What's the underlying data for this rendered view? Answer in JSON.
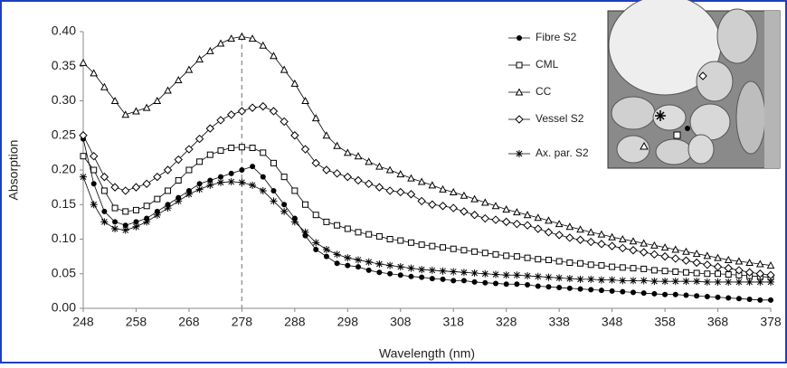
{
  "chart_data": {
    "type": "line",
    "x_label": "Wavelength (nm)",
    "y_label": "Absorption",
    "x": [
      248,
      250,
      252,
      254,
      256,
      258,
      260,
      262,
      264,
      266,
      268,
      270,
      272,
      274,
      276,
      278,
      280,
      282,
      284,
      286,
      288,
      290,
      292,
      294,
      296,
      298,
      300,
      302,
      304,
      306,
      308,
      310,
      312,
      314,
      316,
      318,
      320,
      322,
      324,
      326,
      328,
      330,
      332,
      334,
      336,
      338,
      340,
      342,
      344,
      346,
      348,
      350,
      352,
      354,
      356,
      358,
      360,
      362,
      364,
      366,
      368,
      370,
      372,
      374,
      376,
      378
    ],
    "series": [
      {
        "name": "Fibre S2",
        "color": "#000000",
        "marker": "circle",
        "values": [
          0.245,
          0.18,
          0.14,
          0.125,
          0.12,
          0.125,
          0.13,
          0.14,
          0.15,
          0.16,
          0.17,
          0.18,
          0.185,
          0.19,
          0.195,
          0.2,
          0.205,
          0.19,
          0.17,
          0.15,
          0.13,
          0.105,
          0.085,
          0.075,
          0.065,
          0.062,
          0.06,
          0.055,
          0.052,
          0.05,
          0.048,
          0.046,
          0.045,
          0.043,
          0.042,
          0.04,
          0.04,
          0.038,
          0.037,
          0.036,
          0.035,
          0.035,
          0.034,
          0.032,
          0.031,
          0.03,
          0.029,
          0.028,
          0.027,
          0.026,
          0.025,
          0.024,
          0.023,
          0.022,
          0.021,
          0.02,
          0.02,
          0.019,
          0.018,
          0.017,
          0.016,
          0.015,
          0.014,
          0.013,
          0.012,
          0.012
        ]
      },
      {
        "name": "CML",
        "color": "#000000",
        "marker": "square",
        "values": [
          0.22,
          0.2,
          0.17,
          0.145,
          0.14,
          0.142,
          0.148,
          0.158,
          0.17,
          0.185,
          0.2,
          0.212,
          0.222,
          0.228,
          0.232,
          0.233,
          0.232,
          0.225,
          0.21,
          0.19,
          0.17,
          0.15,
          0.135,
          0.125,
          0.12,
          0.115,
          0.11,
          0.107,
          0.104,
          0.1,
          0.098,
          0.095,
          0.092,
          0.09,
          0.088,
          0.086,
          0.084,
          0.082,
          0.08,
          0.078,
          0.076,
          0.075,
          0.073,
          0.071,
          0.07,
          0.068,
          0.066,
          0.065,
          0.063,
          0.062,
          0.06,
          0.059,
          0.058,
          0.057,
          0.055,
          0.054,
          0.053,
          0.052,
          0.051,
          0.05,
          0.05,
          0.049,
          0.048,
          0.047,
          0.046,
          0.045
        ]
      },
      {
        "name": "CC",
        "color": "#000000",
        "marker": "triangle",
        "values": [
          0.355,
          0.34,
          0.32,
          0.3,
          0.28,
          0.285,
          0.29,
          0.3,
          0.315,
          0.33,
          0.345,
          0.36,
          0.372,
          0.383,
          0.39,
          0.393,
          0.39,
          0.38,
          0.365,
          0.345,
          0.325,
          0.3,
          0.275,
          0.25,
          0.235,
          0.225,
          0.22,
          0.212,
          0.205,
          0.2,
          0.194,
          0.188,
          0.183,
          0.178,
          0.172,
          0.168,
          0.163,
          0.158,
          0.153,
          0.148,
          0.143,
          0.139,
          0.135,
          0.131,
          0.127,
          0.122,
          0.118,
          0.114,
          0.11,
          0.107,
          0.103,
          0.1,
          0.097,
          0.094,
          0.091,
          0.088,
          0.085,
          0.082,
          0.079,
          0.076,
          0.073,
          0.07,
          0.068,
          0.066,
          0.064,
          0.062
        ]
      },
      {
        "name": "Vessel S2",
        "color": "#000000",
        "marker": "diamond",
        "values": [
          0.25,
          0.22,
          0.19,
          0.175,
          0.17,
          0.175,
          0.18,
          0.19,
          0.2,
          0.215,
          0.23,
          0.245,
          0.26,
          0.272,
          0.28,
          0.285,
          0.29,
          0.292,
          0.285,
          0.27,
          0.25,
          0.23,
          0.21,
          0.2,
          0.195,
          0.19,
          0.185,
          0.18,
          0.175,
          0.17,
          0.168,
          0.165,
          0.155,
          0.15,
          0.148,
          0.145,
          0.14,
          0.135,
          0.13,
          0.128,
          0.125,
          0.122,
          0.12,
          0.115,
          0.11,
          0.106,
          0.102,
          0.099,
          0.096,
          0.093,
          0.09,
          0.087,
          0.084,
          0.081,
          0.078,
          0.075,
          0.072,
          0.069,
          0.066,
          0.063,
          0.06,
          0.058,
          0.055,
          0.052,
          0.05,
          0.048
        ]
      },
      {
        "name": "Ax. par. S2",
        "color": "#000000",
        "marker": "asterisk",
        "values": [
          0.19,
          0.15,
          0.125,
          0.115,
          0.113,
          0.118,
          0.125,
          0.135,
          0.145,
          0.155,
          0.165,
          0.172,
          0.178,
          0.182,
          0.183,
          0.182,
          0.178,
          0.17,
          0.155,
          0.14,
          0.125,
          0.11,
          0.095,
          0.085,
          0.078,
          0.073,
          0.07,
          0.067,
          0.064,
          0.062,
          0.06,
          0.058,
          0.056,
          0.055,
          0.054,
          0.053,
          0.052,
          0.051,
          0.05,
          0.049,
          0.048,
          0.048,
          0.047,
          0.046,
          0.045,
          0.044,
          0.043,
          0.042,
          0.042,
          0.041,
          0.041,
          0.04,
          0.04,
          0.04,
          0.039,
          0.039,
          0.039,
          0.039,
          0.039,
          0.038,
          0.038,
          0.038,
          0.038,
          0.038,
          0.038,
          0.038
        ]
      }
    ],
    "xlim": [
      248,
      378
    ],
    "ylim": [
      0,
      0.4
    ],
    "xticks": [
      248,
      258,
      268,
      278,
      288,
      298,
      308,
      318,
      328,
      338,
      348,
      358,
      368,
      378
    ],
    "yticks": [
      {
        "value": 0,
        "label": "0.00"
      },
      {
        "value": 0.05,
        "label": "0.05"
      },
      {
        "value": 0.1,
        "label": "0.10"
      },
      {
        "value": 0.15,
        "label": "0.15"
      },
      {
        "value": 0.2,
        "label": "0.20"
      },
      {
        "value": 0.25,
        "label": "0.25"
      },
      {
        "value": 0.3,
        "label": "0.30"
      },
      {
        "value": 0.35,
        "label": "0.35"
      },
      {
        "value": 0.4,
        "label": "0.40"
      }
    ],
    "reference_line_x": 278,
    "grid": false
  }
}
